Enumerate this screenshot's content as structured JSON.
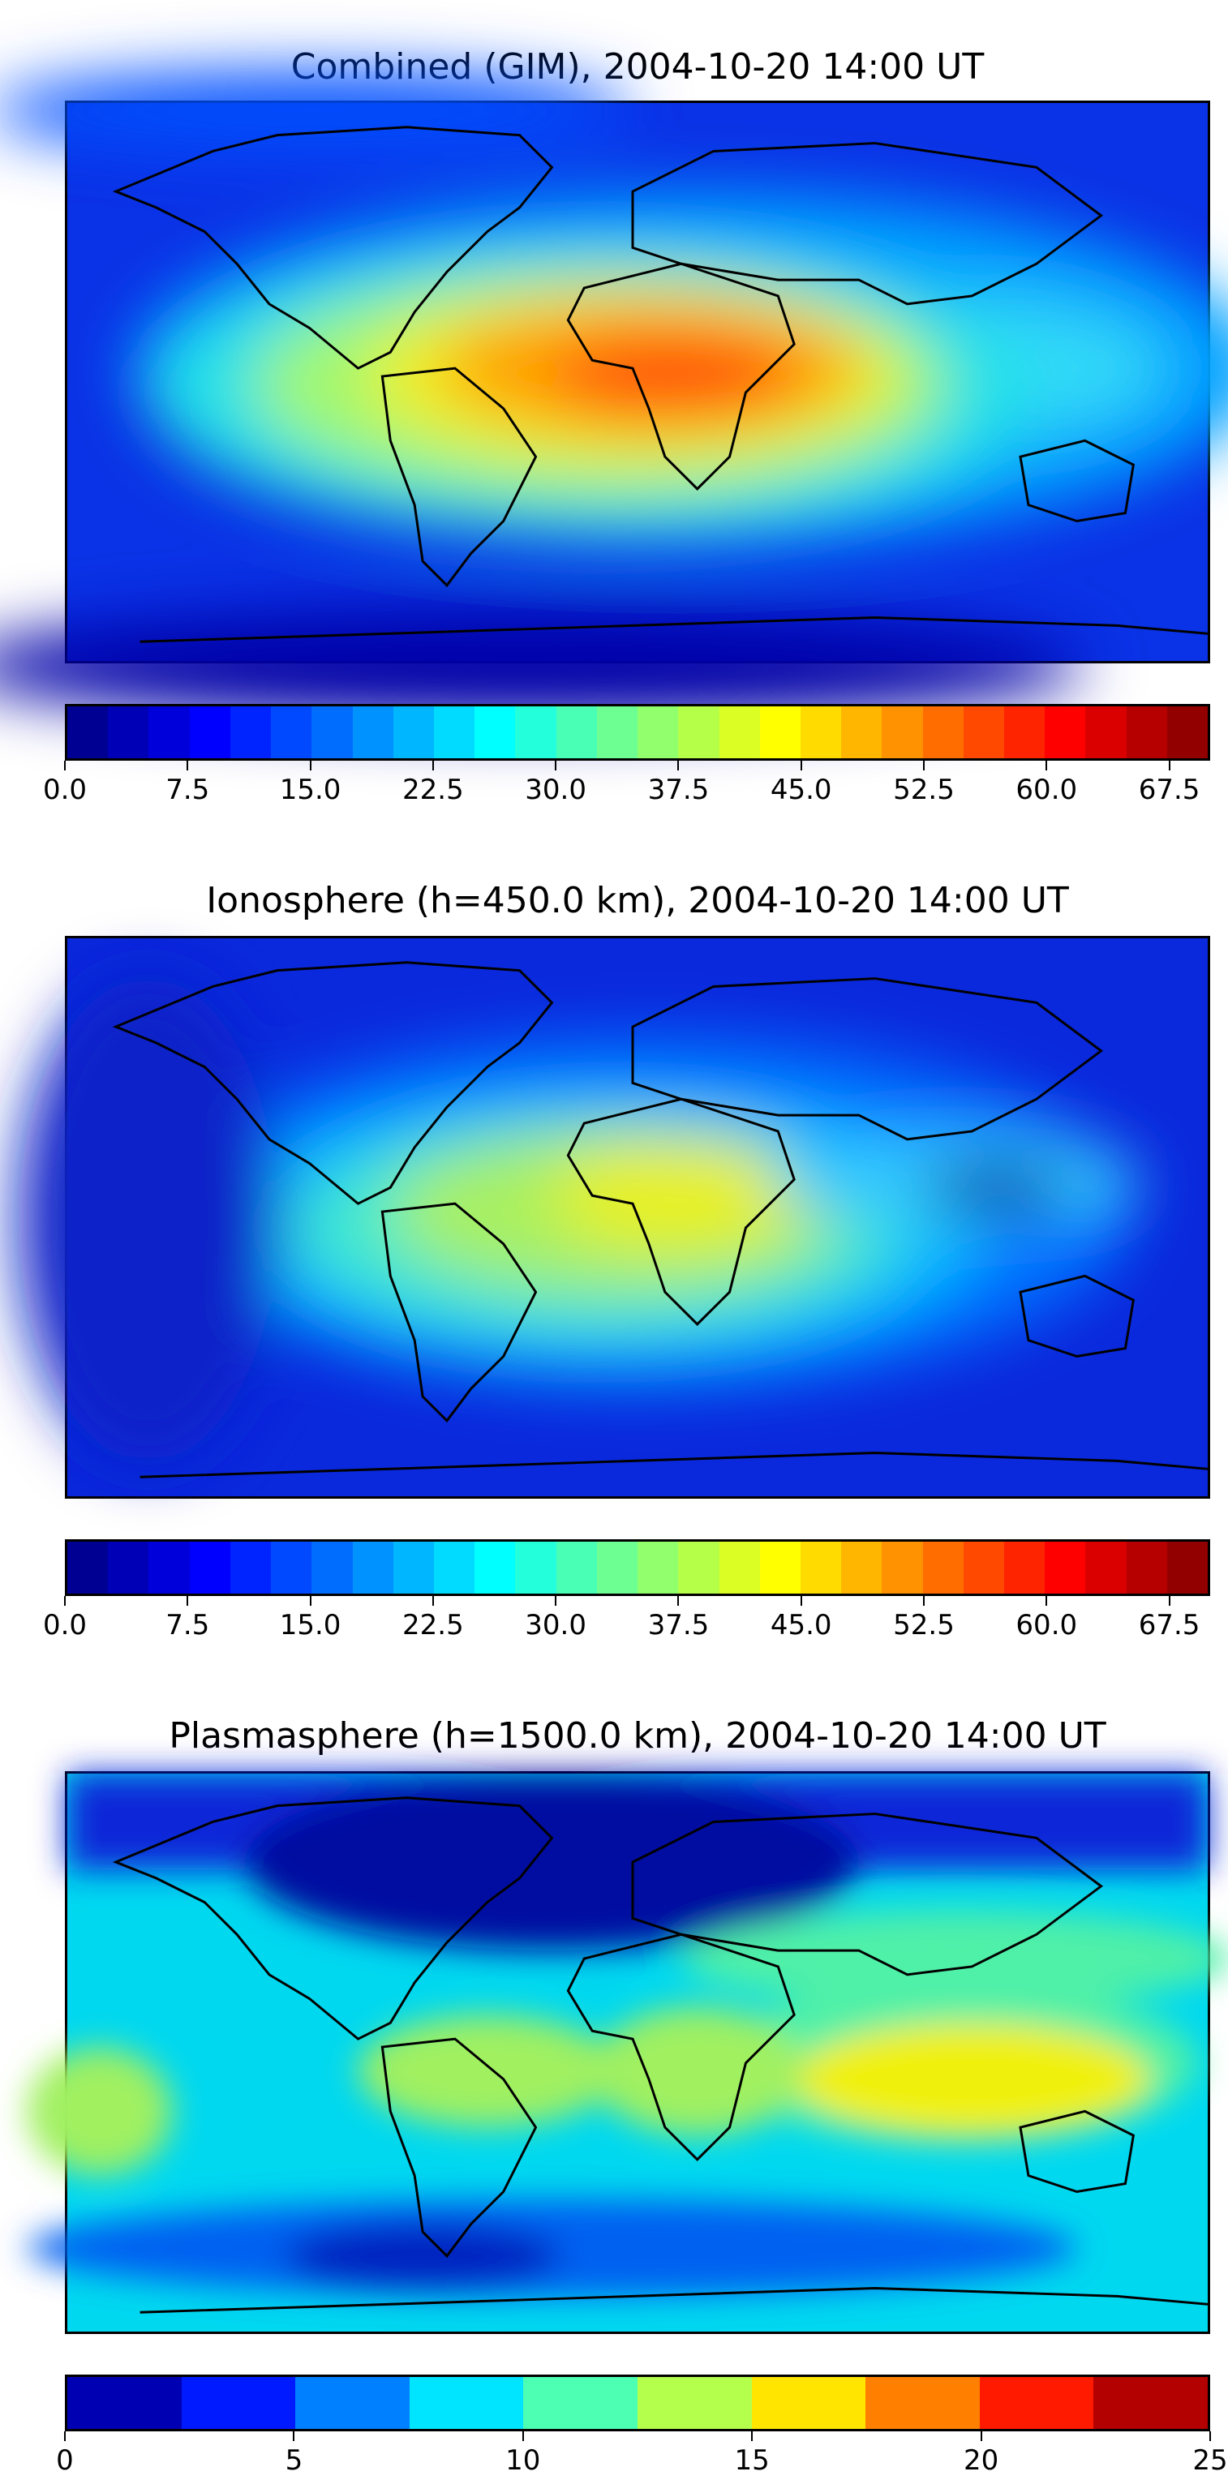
{
  "panels": [
    {
      "title": "Combined (GIM), 2004-10-20 14:00 UT",
      "colorbar": {
        "levels": 28,
        "tick_labels": [
          "0.0",
          "7.5",
          "15.0",
          "22.5",
          "30.0",
          "37.5",
          "45.0",
          "52.5",
          "60.0",
          "67.5"
        ],
        "tick_positions": [
          0,
          3,
          6,
          9,
          12,
          15,
          18,
          21,
          24,
          27
        ]
      }
    },
    {
      "title": "Ionosphere  (h=450.0 km), 2004-10-20 14:00 UT",
      "colorbar": {
        "levels": 28,
        "tick_labels": [
          "0.0",
          "7.5",
          "15.0",
          "22.5",
          "30.0",
          "37.5",
          "45.0",
          "52.5",
          "60.0",
          "67.5"
        ],
        "tick_positions": [
          0,
          3,
          6,
          9,
          12,
          15,
          18,
          21,
          24,
          27
        ]
      }
    },
    {
      "title": "Plasmasphere (h=1500.0 km), 2004-10-20 14:00 UT",
      "colorbar": {
        "levels": 10,
        "tick_labels": [
          "0",
          "5",
          "10",
          "15",
          "20",
          "25"
        ],
        "tick_positions": [
          0,
          2,
          4,
          6,
          8,
          10
        ]
      }
    }
  ]
}
